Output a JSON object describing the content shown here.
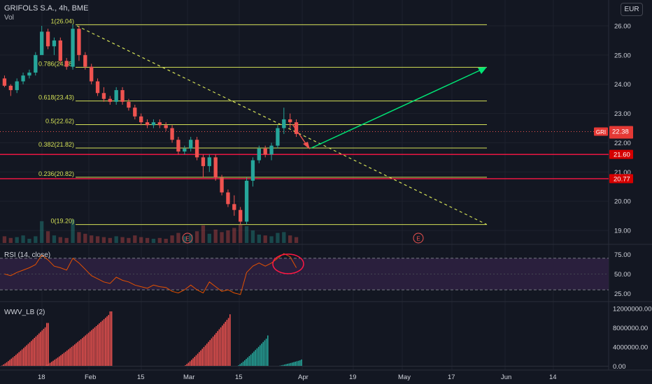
{
  "header": {
    "symbol": "GRIFOLS S.A., 4h, BME",
    "volume_label": "Vol",
    "currency": "EUR"
  },
  "colors": {
    "background": "#131722",
    "grid": "#1e222d",
    "text": "#d1d4dc",
    "bull": "#26a69a",
    "bear": "#ef5350",
    "fib": "#d4e157",
    "support": "#ff1744",
    "projection": "#00e676",
    "rsi_line": "#e65100",
    "rsi_band": "#2a1f3d"
  },
  "chart_data": [
    {
      "type": "candlestick",
      "title": "GRIFOLS S.A., 4h, BME",
      "y_ticks": [
        "26.00",
        "25.00",
        "24.00",
        "23.00",
        "22.00",
        "21.00",
        "20.00",
        "19.00"
      ],
      "ylim": [
        18.55,
        26.5
      ],
      "x_ticks": [
        "18",
        "Feb",
        "15",
        "Mar",
        "15",
        "Apr",
        "19",
        "May",
        "17",
        "Jun",
        "14"
      ],
      "price_series": [
        [
          24.2,
          24.3,
          23.9,
          23.95
        ],
        [
          23.95,
          24.0,
          23.6,
          23.8
        ],
        [
          23.8,
          24.2,
          23.7,
          24.1
        ],
        [
          24.1,
          24.4,
          24.0,
          24.3
        ],
        [
          24.3,
          24.5,
          24.2,
          24.4
        ],
        [
          24.4,
          25.1,
          24.3,
          25.0
        ],
        [
          25.0,
          26.0,
          25.5,
          25.8
        ],
        [
          25.8,
          25.9,
          25.2,
          25.3
        ],
        [
          25.3,
          25.6,
          25.0,
          25.5
        ],
        [
          25.5,
          25.6,
          24.7,
          24.8
        ],
        [
          24.8,
          24.9,
          24.5,
          24.6
        ],
        [
          24.6,
          26.04,
          24.5,
          25.9
        ],
        [
          25.9,
          26.0,
          24.8,
          25.0
        ],
        [
          25.0,
          25.1,
          24.5,
          24.6
        ],
        [
          24.6,
          24.7,
          24.0,
          24.1
        ],
        [
          24.1,
          24.2,
          23.6,
          23.7
        ],
        [
          23.7,
          23.9,
          23.4,
          23.5
        ],
        [
          23.5,
          23.6,
          23.3,
          23.4
        ],
        [
          23.4,
          23.9,
          23.3,
          23.8
        ],
        [
          23.8,
          23.9,
          23.3,
          23.4
        ],
        [
          23.4,
          23.5,
          23.1,
          23.2
        ],
        [
          23.2,
          23.3,
          22.8,
          22.9
        ],
        [
          22.9,
          23.0,
          22.6,
          22.7
        ],
        [
          22.7,
          22.8,
          22.5,
          22.6
        ],
        [
          22.6,
          22.8,
          22.5,
          22.7
        ],
        [
          22.7,
          22.8,
          22.5,
          22.6
        ],
        [
          22.6,
          22.7,
          22.4,
          22.5
        ],
        [
          22.5,
          22.6,
          22.0,
          22.1
        ],
        [
          22.1,
          22.2,
          21.6,
          21.7
        ],
        [
          21.7,
          21.9,
          21.6,
          21.8
        ],
        [
          21.8,
          22.2,
          21.7,
          22.1
        ],
        [
          22.1,
          22.2,
          21.4,
          21.5
        ],
        [
          21.5,
          21.6,
          20.8,
          21.2
        ],
        [
          21.2,
          21.6,
          21.0,
          21.5
        ],
        [
          21.5,
          21.6,
          20.7,
          20.8
        ],
        [
          20.8,
          20.9,
          20.2,
          20.3
        ],
        [
          20.3,
          20.4,
          19.8,
          19.9
        ],
        [
          19.9,
          20.2,
          19.5,
          19.7
        ],
        [
          19.7,
          19.8,
          19.2,
          19.3
        ],
        [
          19.3,
          20.8,
          19.2,
          20.7
        ],
        [
          20.7,
          21.5,
          20.5,
          21.4
        ],
        [
          21.4,
          21.9,
          21.3,
          21.8
        ],
        [
          21.8,
          21.9,
          21.5,
          21.6
        ],
        [
          21.6,
          22.0,
          21.4,
          21.9
        ],
        [
          21.9,
          22.6,
          21.8,
          22.5
        ],
        [
          22.5,
          23.2,
          22.3,
          22.8
        ],
        [
          22.8,
          23.0,
          22.5,
          22.7
        ],
        [
          22.7,
          22.8,
          22.2,
          22.3
        ]
      ],
      "volume_series": [
        0.8,
        0.6,
        0.7,
        0.9,
        0.5,
        0.8,
        2.6,
        1.4,
        0.9,
        0.7,
        0.6,
        2.8,
        1.3,
        1.1,
        0.9,
        0.8,
        0.7,
        0.6,
        0.8,
        0.7,
        0.6,
        0.9,
        0.7,
        0.6,
        0.5,
        0.6,
        0.5,
        0.9,
        1.2,
        0.8,
        1.0,
        1.4,
        2.1,
        1.1,
        1.6,
        1.3,
        1.5,
        1.8,
        2.2,
        2.0,
        1.5,
        1.0,
        0.9,
        0.8,
        1.2,
        1.3,
        0.9,
        0.7
      ],
      "fibonacci_levels": [
        {
          "label": "1(26.04)",
          "value": 26.04
        },
        {
          "label": "0.786(24.58)",
          "value": 24.58
        },
        {
          "label": "0.618(23.43)",
          "value": 23.43
        },
        {
          "label": "0.5(22.62)",
          "value": 22.62
        },
        {
          "label": "0.382(21.82)",
          "value": 21.82
        },
        {
          "label": "0.236(20.82)",
          "value": 20.82
        },
        {
          "label": "0(19.20)",
          "value": 19.2
        }
      ],
      "price_tags": [
        {
          "text": "22.38",
          "value": 22.38,
          "symbol": "GRI"
        },
        {
          "text": "21.60",
          "value": 21.6
        },
        {
          "text": "20.77",
          "value": 20.77
        }
      ],
      "earnings_markers": [
        "E",
        "E"
      ]
    },
    {
      "type": "line",
      "title": "RSI (14, close)",
      "y_ticks": [
        "75.00",
        "50.00",
        "25.00"
      ],
      "ylim": [
        15,
        85
      ],
      "band": [
        30,
        70
      ],
      "values": [
        50,
        48,
        52,
        55,
        58,
        62,
        74,
        68,
        60,
        58,
        55,
        70,
        64,
        56,
        48,
        44,
        40,
        38,
        46,
        42,
        40,
        36,
        34,
        32,
        36,
        34,
        33,
        28,
        26,
        30,
        36,
        30,
        26,
        40,
        34,
        28,
        30,
        26,
        24,
        52,
        60,
        64,
        60,
        64,
        70,
        76,
        72,
        58
      ]
    },
    {
      "type": "bar",
      "title": "WWV_LB (2)",
      "y_ticks": [
        "12000000.00",
        "8000000.00",
        "4000000.00",
        "0.00"
      ],
      "ylim": [
        -500000,
        13000000
      ],
      "wave_peaks": [
        9000000,
        11400000,
        10800000,
        6400000,
        1400000
      ],
      "wave_colors": [
        "bear",
        "bear",
        "bear",
        "bull",
        "bull"
      ]
    }
  ]
}
